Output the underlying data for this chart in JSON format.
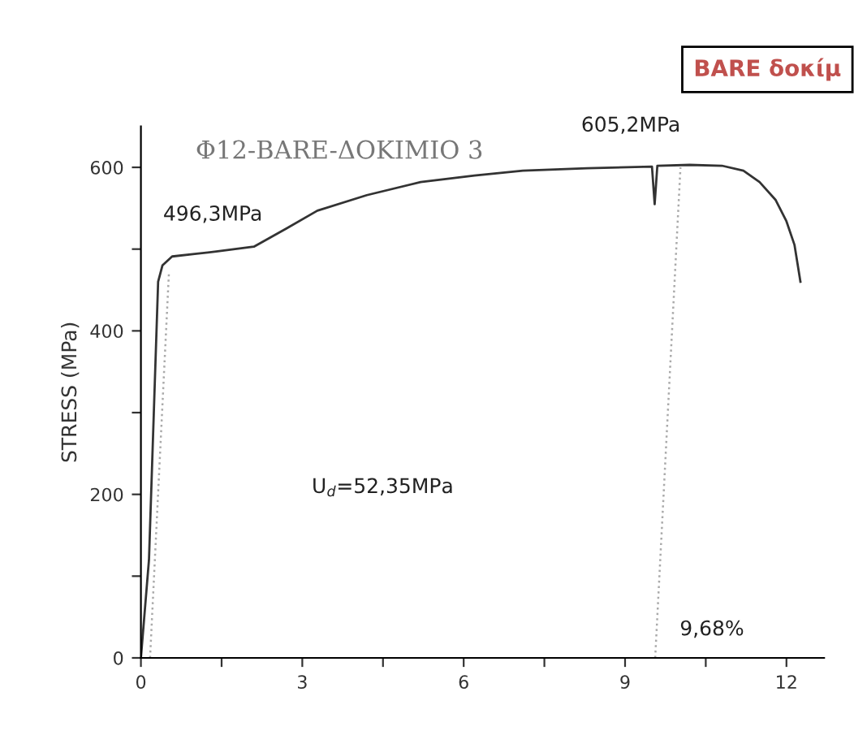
{
  "chart_data": {
    "type": "line",
    "title": "Φ12-BARE-ΔΟΚΙΜΙΟ 3",
    "ylabel": "STRESS (MPa)",
    "xlim": [
      0,
      12.7
    ],
    "ylim": [
      0,
      650
    ],
    "xticks": [
      0,
      {
        "value": 1.5,
        "label": null
      },
      3,
      {
        "value": 4.5,
        "label": null
      },
      6,
      {
        "value": 7.5,
        "label": null
      },
      9,
      {
        "value": 10.5,
        "label": null
      },
      12
    ],
    "yticks": [
      0,
      {
        "value": 100,
        "label": null
      },
      200,
      {
        "value": 300,
        "label": null
      },
      400,
      {
        "value": 500,
        "label": null
      },
      600
    ],
    "grid": false,
    "legend": false,
    "marker": "none",
    "series": [
      {
        "color": "#333333",
        "line_style": "solid",
        "x": [
          0,
          0.15,
          0.32,
          0.4,
          0.58,
          1.0,
          1.4,
          2.1,
          2.7,
          3.28,
          4.2,
          5.2,
          6.2,
          7.1,
          8.3,
          9.5,
          9.55,
          9.6,
          10.2,
          10.8,
          11.2,
          11.5,
          11.8,
          12.0,
          12.15,
          12.26
        ],
        "values": [
          0,
          120,
          460,
          480,
          491,
          494,
          497,
          503,
          525,
          547,
          566,
          582,
          590,
          596,
          599,
          601,
          555,
          602,
          603,
          602,
          596,
          582,
          560,
          534,
          505,
          460
        ]
      },
      {
        "color": "#aaaaaa",
        "line_style": "dotted",
        "x": [
          0.17,
          0.52
        ],
        "values": [
          0,
          470
        ]
      },
      {
        "color": "#aaaaaa",
        "line_style": "dotted",
        "x": [
          9.56,
          10.03
        ],
        "values": [
          0,
          600
        ]
      }
    ],
    "annotations": [
      {
        "text": "496,3MPa",
        "x": 0.58,
        "y": 496.3
      },
      {
        "text": "605,2MPa",
        "x": 10.03,
        "y": 605.2
      },
      {
        "text": "9,68%",
        "x": 9.68,
        "y": 0
      },
      "U$_{d}$=52,35MPa",
      "BARE δοκίμ"
    ]
  }
}
